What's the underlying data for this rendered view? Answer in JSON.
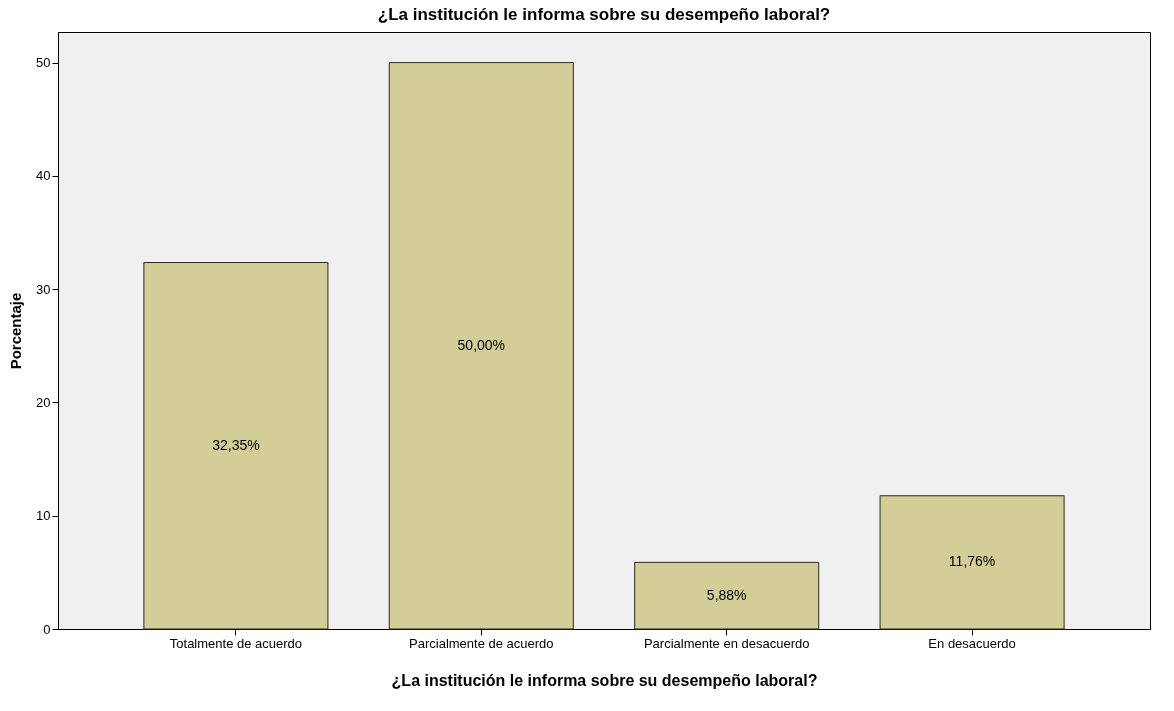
{
  "chart_data": {
    "type": "bar",
    "title": "¿La institución le informa sobre su desempeño laboral?",
    "xlabel": "¿La institución le informa sobre su desempeño laboral?",
    "ylabel": "Porcentaje",
    "categories": [
      "Totalmente de acuerdo",
      "Parcialmente de acuerdo",
      "Parcialmente en desacuerdo",
      "En desacuerdo"
    ],
    "values": [
      32.35,
      50,
      5.88,
      11.76
    ],
    "value_labels": [
      "32,35%",
      "50,00%",
      "5,88%",
      "11,76%"
    ],
    "color": "#d3ce98",
    "ylim": [
      0,
      52.7
    ],
    "yticks": [
      0,
      10,
      20,
      30,
      40,
      50
    ],
    "grid": false
  }
}
